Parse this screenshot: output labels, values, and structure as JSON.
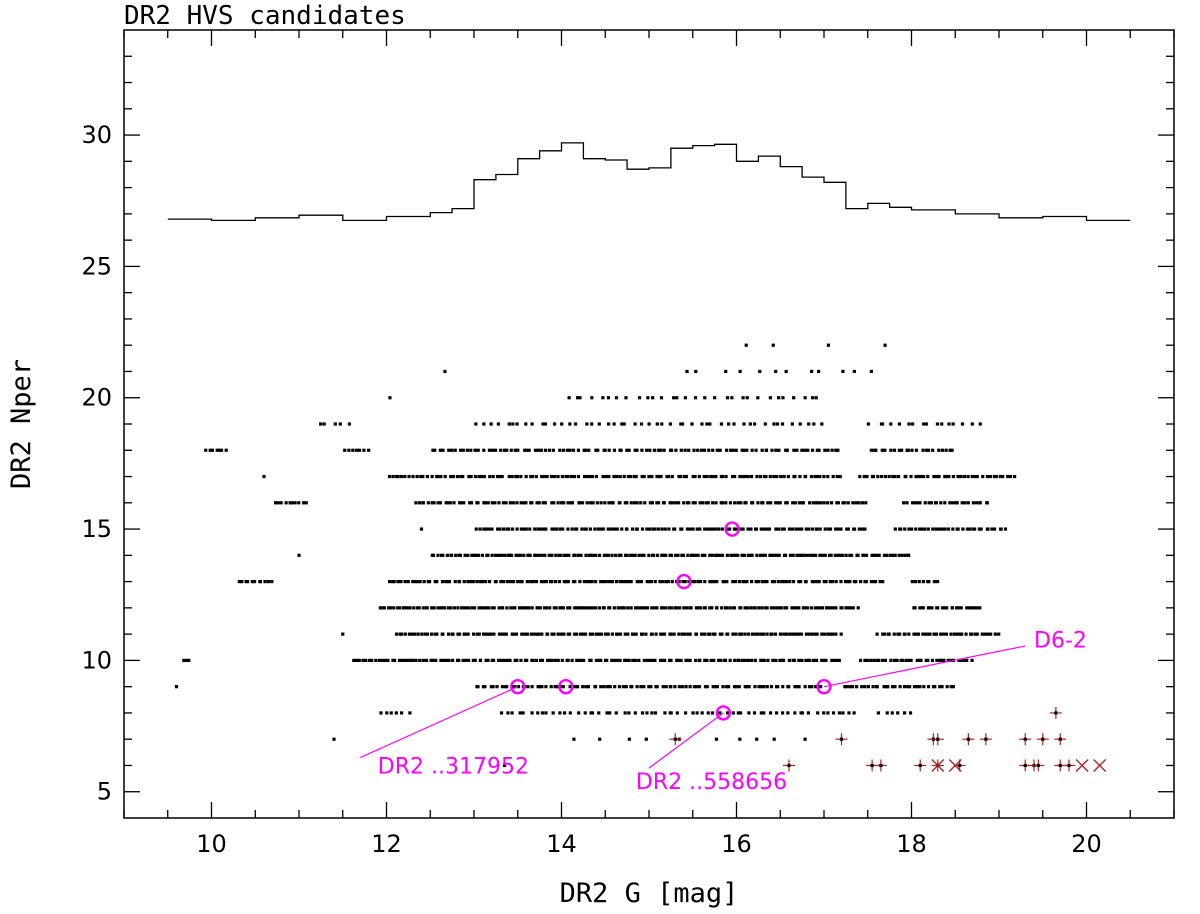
{
  "chart_data": {
    "type": "scatter",
    "title": "DR2 HVS candidates",
    "xlabel": "DR2 G [mag]",
    "ylabel": "DR2 Nper",
    "xlim": [
      9,
      21
    ],
    "ylim": [
      4,
      34
    ],
    "xticks": [
      "10",
      "12",
      "14",
      "16",
      "18",
      "20"
    ],
    "yticks": [
      "5",
      "10",
      "15",
      "20",
      "25",
      "30"
    ],
    "colors": {
      "field": "#000000",
      "histogram": "#000000",
      "highlight": "#ff00ff",
      "red_marker": "#b22222"
    },
    "histogram": {
      "edges": [
        9.5,
        10.0,
        10.5,
        11.0,
        11.5,
        12.0,
        12.5,
        12.75,
        13.0,
        13.25,
        13.5,
        13.75,
        14.0,
        14.25,
        14.5,
        14.75,
        15.0,
        15.25,
        15.5,
        15.75,
        16.0,
        16.25,
        16.5,
        16.75,
        17.0,
        17.25,
        17.5,
        17.75,
        18.0,
        18.5,
        19.0,
        19.5,
        20.0,
        20.5
      ],
      "values": [
        26.8,
        26.75,
        26.85,
        26.95,
        26.75,
        26.9,
        27.05,
        27.2,
        28.3,
        28.5,
        29.1,
        29.4,
        29.7,
        29.1,
        29.05,
        28.7,
        28.75,
        29.5,
        29.6,
        29.65,
        29.0,
        29.2,
        28.8,
        28.4,
        28.2,
        27.2,
        27.4,
        27.25,
        27.15,
        27.0,
        26.85,
        26.9,
        26.75
      ]
    },
    "field_rows": [
      {
        "y": 22,
        "ranges": [
          [
            15.8,
            17.7
          ]
        ],
        "n": 4
      },
      {
        "y": 21,
        "ranges": [
          [
            12.6,
            12.7
          ],
          [
            15.3,
            17.7
          ]
        ],
        "n": 12
      },
      {
        "y": 20,
        "ranges": [
          [
            12.0,
            12.05
          ],
          [
            14.0,
            17.0
          ]
        ],
        "n": 30
      },
      {
        "y": 19,
        "ranges": [
          [
            11.2,
            11.6
          ],
          [
            13.0,
            17.0
          ],
          [
            17.5,
            18.8
          ]
        ],
        "n": 70
      },
      {
        "y": 18,
        "ranges": [
          [
            9.9,
            10.2
          ],
          [
            11.5,
            11.8
          ],
          [
            12.5,
            17.2
          ],
          [
            17.5,
            18.5
          ]
        ],
        "n": 140
      },
      {
        "y": 17,
        "ranges": [
          [
            10.6,
            10.6
          ],
          [
            12.0,
            17.2
          ],
          [
            17.4,
            19.2
          ]
        ],
        "n": 170
      },
      {
        "y": 16,
        "ranges": [
          [
            10.7,
            11.1
          ],
          [
            12.3,
            17.5
          ],
          [
            17.9,
            18.9
          ]
        ],
        "n": 170
      },
      {
        "y": 15,
        "ranges": [
          [
            12.4,
            12.4
          ],
          [
            13.0,
            17.5
          ],
          [
            17.8,
            19.1
          ]
        ],
        "n": 150
      },
      {
        "y": 14,
        "ranges": [
          [
            11.0,
            11.0
          ],
          [
            12.5,
            18.0
          ]
        ],
        "n": 160
      },
      {
        "y": 13,
        "ranges": [
          [
            10.3,
            10.7
          ],
          [
            12.0,
            17.7
          ],
          [
            18.0,
            18.3
          ]
        ],
        "n": 170
      },
      {
        "y": 12,
        "ranges": [
          [
            11.9,
            17.4
          ],
          [
            18.0,
            18.8
          ]
        ],
        "n": 190
      },
      {
        "y": 11,
        "ranges": [
          [
            11.5,
            11.5
          ],
          [
            12.1,
            17.2
          ],
          [
            17.6,
            19.0
          ]
        ],
        "n": 180
      },
      {
        "y": 10,
        "ranges": [
          [
            9.65,
            9.75
          ],
          [
            11.6,
            17.2
          ],
          [
            17.4,
            18.7
          ]
        ],
        "n": 190
      },
      {
        "y": 9,
        "ranges": [
          [
            9.6,
            9.6
          ],
          [
            13.0,
            17.0
          ],
          [
            17.2,
            18.5
          ]
        ],
        "n": 130
      },
      {
        "y": 8,
        "ranges": [
          [
            11.9,
            12.3
          ],
          [
            13.3,
            17.4
          ],
          [
            17.6,
            18.0
          ]
        ],
        "n": 75
      },
      {
        "y": 7,
        "ranges": [
          [
            11.4,
            11.4
          ],
          [
            14.0,
            17.0
          ]
        ],
        "n": 10
      },
      {
        "y": 6,
        "ranges": [
          [
            13.35,
            13.35
          ]
        ],
        "n": 1
      }
    ],
    "highlighted": [
      {
        "x": 15.95,
        "y": 15
      },
      {
        "x": 15.4,
        "y": 13
      },
      {
        "x": 13.5,
        "y": 9
      },
      {
        "x": 14.05,
        "y": 9
      },
      {
        "x": 17.0,
        "y": 9
      },
      {
        "x": 15.85,
        "y": 8
      }
    ],
    "red_plus": [
      {
        "x": 15.3,
        "y": 7
      },
      {
        "x": 17.2,
        "y": 7
      },
      {
        "x": 18.25,
        "y": 7
      },
      {
        "x": 18.3,
        "y": 7
      },
      {
        "x": 18.65,
        "y": 7
      },
      {
        "x": 18.85,
        "y": 7
      },
      {
        "x": 19.3,
        "y": 7
      },
      {
        "x": 19.5,
        "y": 7
      },
      {
        "x": 19.7,
        "y": 7
      },
      {
        "x": 19.65,
        "y": 8
      },
      {
        "x": 16.6,
        "y": 6
      },
      {
        "x": 17.55,
        "y": 6
      },
      {
        "x": 17.65,
        "y": 6
      },
      {
        "x": 18.1,
        "y": 6
      },
      {
        "x": 18.3,
        "y": 6
      },
      {
        "x": 18.55,
        "y": 6
      },
      {
        "x": 19.3,
        "y": 6
      },
      {
        "x": 19.4,
        "y": 6
      },
      {
        "x": 19.45,
        "y": 6
      },
      {
        "x": 19.7,
        "y": 6
      },
      {
        "x": 19.8,
        "y": 6
      }
    ],
    "red_cross": [
      {
        "x": 18.3,
        "y": 6
      },
      {
        "x": 18.5,
        "y": 6
      },
      {
        "x": 19.95,
        "y": 6
      },
      {
        "x": 20.15,
        "y": 6
      }
    ],
    "annotations": [
      {
        "text": "D6-2",
        "text_x": 19.4,
        "text_y": 10.5,
        "point_x": 17.0,
        "point_y": 9,
        "line_x": 19.3,
        "line_y": 10.55
      },
      {
        "text": "DR2 ..317952",
        "text_x": 11.9,
        "text_y": 5.7,
        "point_x": 13.5,
        "point_y": 9,
        "line_x": 11.7,
        "line_y": 6.3
      },
      {
        "text": "DR2 ..558656",
        "text_x": 14.85,
        "text_y": 5.1,
        "point_x": 15.85,
        "point_y": 8,
        "line_x": 15.0,
        "line_y": 5.9
      }
    ]
  }
}
